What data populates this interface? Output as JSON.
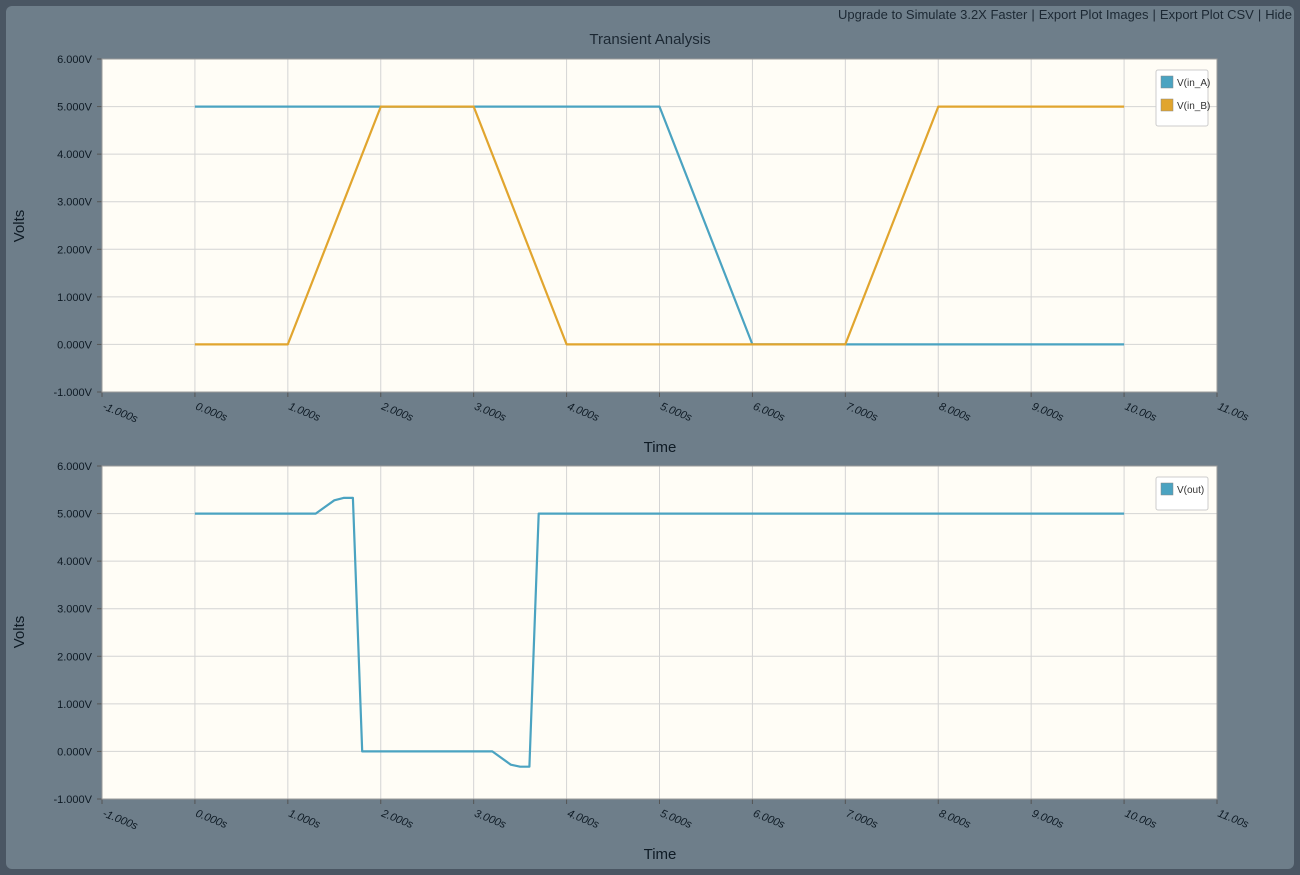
{
  "toolbar": {
    "links": [
      "Upgrade to Simulate 3.2X Faster",
      "Export Plot Images",
      "Export Plot CSV",
      "Hide"
    ],
    "separator": "|"
  },
  "chart_data": [
    {
      "type": "line",
      "title": "Transient Analysis",
      "xlabel": "Time",
      "ylabel": "Volts",
      "xlim": [
        -1,
        11
      ],
      "ylim": [
        -1,
        6
      ],
      "x_ticks": [
        "-1.000s",
        "0.000s",
        "1.000s",
        "2.000s",
        "3.000s",
        "4.000s",
        "5.000s",
        "6.000s",
        "7.000s",
        "8.000s",
        "9.000s",
        "10.00s",
        "11.00s"
      ],
      "y_ticks": [
        "-1.000V",
        "0.000V",
        "1.000V",
        "2.000V",
        "3.000V",
        "4.000V",
        "5.000V",
        "6.000V"
      ],
      "grid": true,
      "legend_position": "top-right",
      "series": [
        {
          "name": "V(in_A)",
          "color": "#4ba3c1",
          "x": [
            0,
            5,
            6,
            10
          ],
          "y": [
            5,
            5,
            0,
            0
          ]
        },
        {
          "name": "V(in_B)",
          "color": "#e1a52e",
          "x": [
            0,
            1,
            2,
            3,
            4,
            7,
            8,
            10
          ],
          "y": [
            0,
            0,
            5,
            5,
            0,
            0,
            5,
            5
          ]
        }
      ]
    },
    {
      "type": "line",
      "xlabel": "Time",
      "ylabel": "Volts",
      "xlim": [
        -1,
        11
      ],
      "ylim": [
        -1,
        6
      ],
      "x_ticks": [
        "-1.000s",
        "0.000s",
        "1.000s",
        "2.000s",
        "3.000s",
        "4.000s",
        "5.000s",
        "6.000s",
        "7.000s",
        "8.000s",
        "9.000s",
        "10.00s",
        "11.00s"
      ],
      "y_ticks": [
        "-1.000V",
        "0.000V",
        "1.000V",
        "2.000V",
        "3.000V",
        "4.000V",
        "5.000V",
        "6.000V"
      ],
      "grid": true,
      "legend_position": "top-right",
      "series": [
        {
          "name": "V(out)",
          "color": "#4ba3c1",
          "x": [
            0,
            1.3,
            1.5,
            1.6,
            1.7,
            1.8,
            3.2,
            3.4,
            3.5,
            3.6,
            3.7,
            10
          ],
          "y": [
            5,
            5,
            5.28,
            5.33,
            5.33,
            0,
            0,
            -0.28,
            -0.32,
            -0.32,
            5,
            5
          ]
        }
      ]
    }
  ]
}
